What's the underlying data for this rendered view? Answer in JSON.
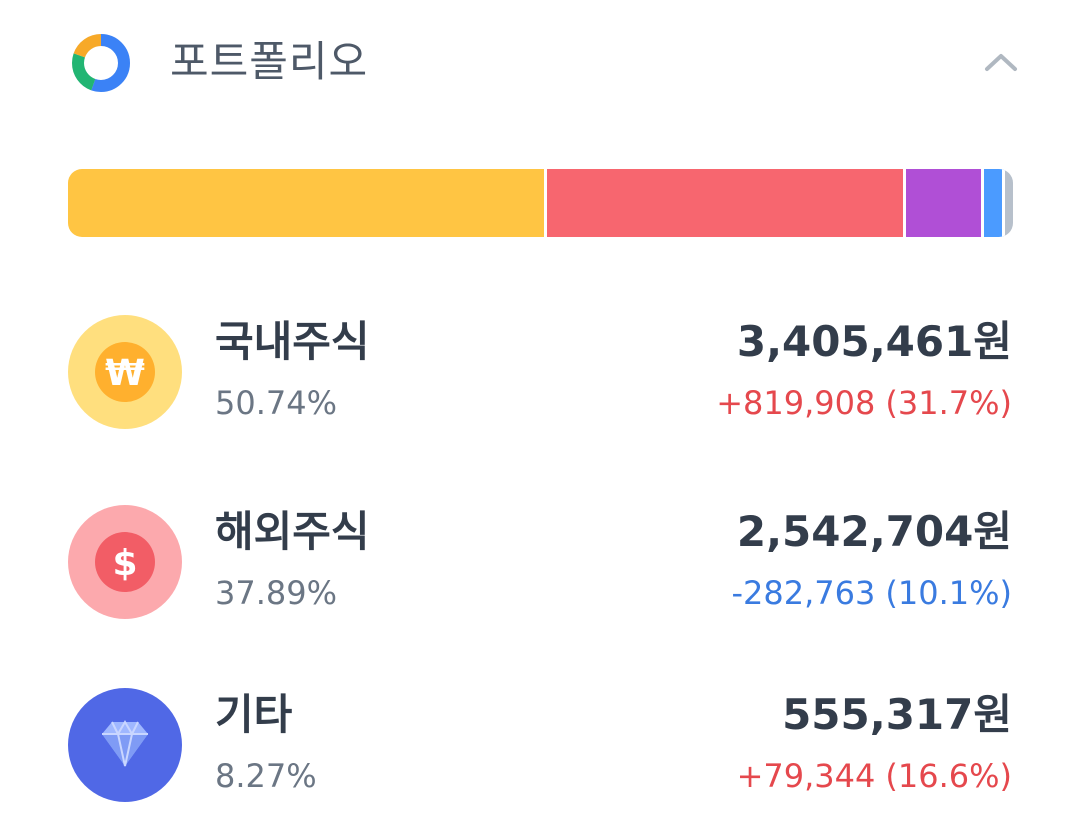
{
  "header": {
    "title": "포트폴리오",
    "icon": "donut-chart-icon",
    "collapse_icon": "chevron-up-icon"
  },
  "allocation_bar": [
    {
      "label": "국내주식",
      "share_pct": 50.74,
      "color": "#ffc543"
    },
    {
      "label": "해외주식",
      "share_pct": 37.89,
      "color": "#f7666f"
    },
    {
      "label": "기타",
      "share_pct": 8.27,
      "color": "#b04fd6"
    },
    {
      "label": "",
      "share_pct": 2.3,
      "color": "#4b9bff"
    },
    {
      "label": "",
      "share_pct": 0.8,
      "color": "#b7c0cb"
    }
  ],
  "assets": [
    {
      "name": "국내주식",
      "share": "50.74%",
      "value": "3,405,461원",
      "change": "+819,908",
      "change_pct": "(31.7%)",
      "direction": "up",
      "icon": "won-coin-icon",
      "icon_bg": "#ffdf7e",
      "icon_fg": "#ffb02e"
    },
    {
      "name": "해외주식",
      "share": "37.89%",
      "value": "2,542,704원",
      "change": "-282,763",
      "change_pct": "(10.1%)",
      "direction": "down",
      "icon": "dollar-coin-icon",
      "icon_bg": "#fca9ad",
      "icon_fg": "#f25d66"
    },
    {
      "name": "기타",
      "share": "8.27%",
      "value": "555,317원",
      "change": "+79,344",
      "change_pct": "(16.6%)",
      "direction": "up",
      "icon": "diamond-icon",
      "icon_bg": "#5068e6",
      "icon_fg": "#9fb7ff"
    }
  ]
}
